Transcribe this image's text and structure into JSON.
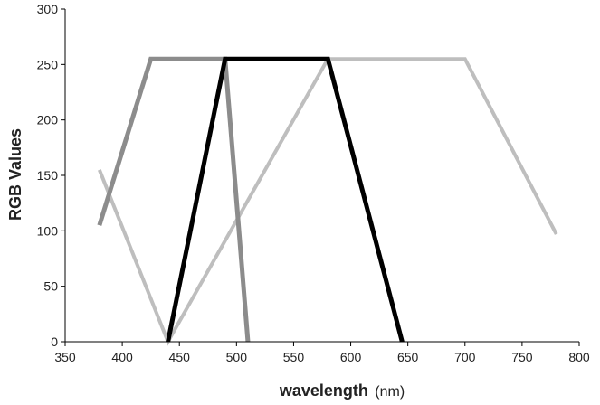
{
  "chart_data": {
    "type": "line",
    "xlabel": "wavelength",
    "xunit": "(nm)",
    "ylabel": "RGB Values",
    "xlim": [
      350,
      800
    ],
    "ylim": [
      0,
      300
    ],
    "x_ticks": [
      350,
      400,
      450,
      500,
      550,
      600,
      650,
      700,
      750,
      800
    ],
    "y_ticks": [
      0,
      50,
      100,
      150,
      200,
      250,
      300
    ],
    "grid": false,
    "legend": "none",
    "series": [
      {
        "color": "#bebebe",
        "points": [
          [
            380,
            155
          ],
          [
            440,
            0
          ],
          [
            580,
            255
          ],
          [
            700,
            255
          ],
          [
            780,
            97
          ]
        ]
      },
      {
        "color": "#8c8c8c",
        "points": [
          [
            380,
            105
          ],
          [
            425,
            255
          ],
          [
            490,
            255
          ],
          [
            510,
            0
          ]
        ]
      },
      {
        "color": "#000000",
        "points": [
          [
            440,
            0
          ],
          [
            490,
            255
          ],
          [
            580,
            255
          ],
          [
            645,
            0
          ]
        ]
      }
    ]
  }
}
